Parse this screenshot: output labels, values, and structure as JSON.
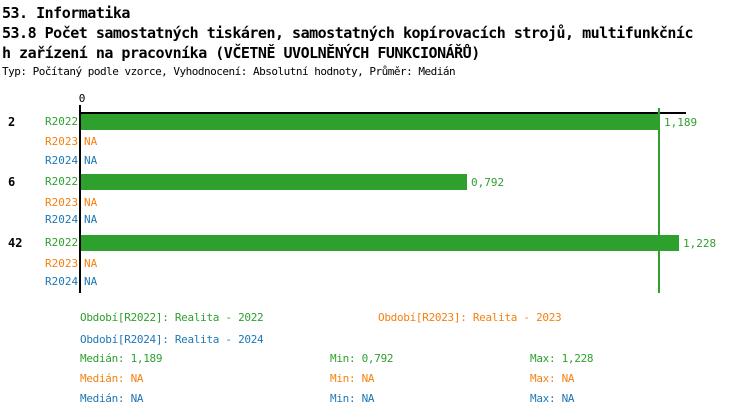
{
  "header": {
    "line1": "53. Informatika",
    "line2": "53.8 Počet samostatných tiskáren, samostatných kopírovacích strojů, multifunkčníc",
    "line3": "h zařízení na pracovníka (VČETNĚ UVOLNĚNÝCH FUNKCIONÁŘŮ)",
    "meta": "Typ: Počítaný podle vzorce, Vyhodnocení: Absolutní hodnoty, Průměr: Medián"
  },
  "colors": {
    "r2022_green": "#2EA02E",
    "r2023_orange": "#F5800F",
    "r2024_blue": "#1F77B4",
    "axis_black": "#000000"
  },
  "chart_data": {
    "type": "bar",
    "orientation": "horizontal",
    "title": "53.8 Počet samostatných tiskáren, samostatných kopírovacích strojů, multifunkčních zařízení na pracovníka (VČETNĚ UVOLNĚNÝCH FUNKCIONÁŘŮ)",
    "axis_zero_label": "0",
    "xlim": [
      0,
      1.25
    ],
    "median_line": {
      "value": 1.189,
      "series": "R2022",
      "display": "1,189"
    },
    "series_order": [
      "R2022",
      "R2023",
      "R2024"
    ],
    "groups": [
      {
        "label": "2",
        "bars": [
          {
            "series": "R2022",
            "value": 1.189,
            "display": "1,189"
          },
          {
            "series": "R2023",
            "value": null,
            "display": "NA"
          },
          {
            "series": "R2024",
            "value": null,
            "display": "NA"
          }
        ]
      },
      {
        "label": "6",
        "bars": [
          {
            "series": "R2022",
            "value": 0.792,
            "display": "0,792"
          },
          {
            "series": "R2023",
            "value": null,
            "display": "NA"
          },
          {
            "series": "R2024",
            "value": null,
            "display": "NA"
          }
        ]
      },
      {
        "label": "42",
        "bars": [
          {
            "series": "R2022",
            "value": 1.228,
            "display": "1,228"
          },
          {
            "series": "R2023",
            "value": null,
            "display": "NA"
          },
          {
            "series": "R2024",
            "value": null,
            "display": "NA"
          }
        ]
      }
    ]
  },
  "legend": {
    "r2022": "Období[R2022]: Realita - 2022",
    "r2023": "Období[R2023]: Realita - 2023",
    "r2024": "Období[R2024]: Realita - 2024"
  },
  "stats": {
    "r2022": {
      "median": "Medián: 1,189",
      "min": "Min: 0,792",
      "max": "Max: 1,228"
    },
    "r2023": {
      "median": "Medián: NA",
      "min": "Min: NA",
      "max": "Max: NA"
    },
    "r2024": {
      "median": "Medián: NA",
      "min": "Min: NA",
      "max": "Max: NA"
    }
  }
}
